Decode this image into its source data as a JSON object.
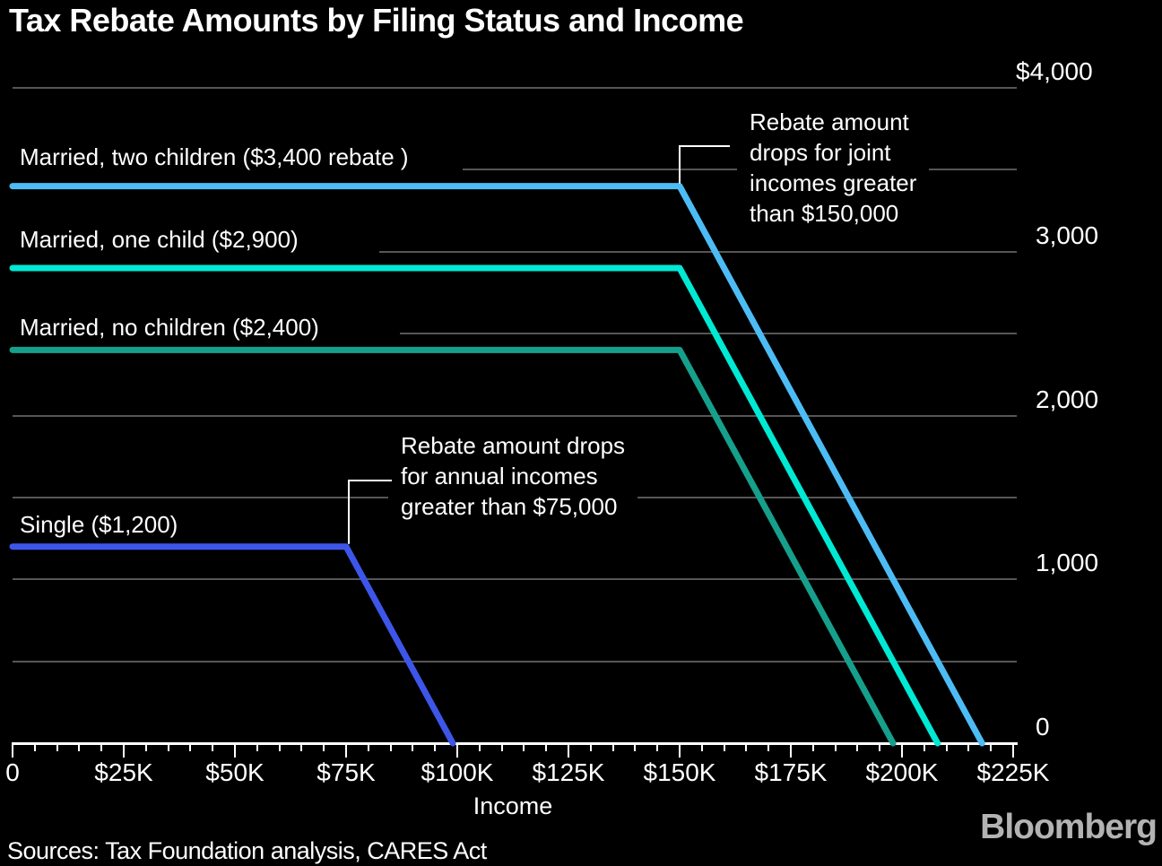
{
  "title": "Tax Rebate Amounts by Filing Status and Income",
  "source": "Sources: Tax Foundation analysis, CARES Act",
  "brand": "Bloomberg",
  "colors": {
    "background": "#000000",
    "grid": "#565656",
    "axis": "#ffffff",
    "text": "#ffffff",
    "brand_gray": "#b3b3b3",
    "married_two_children": "#4dbcf5",
    "married_one_child": "#00e9d4",
    "married_no_children": "#16a08c",
    "single": "#3d56e9"
  },
  "x_axis": {
    "label": "Income",
    "minor_tick_step": 5000,
    "ticks": [
      {
        "value": 0,
        "label": "0"
      },
      {
        "value": 25000,
        "label": "$25K"
      },
      {
        "value": 50000,
        "label": "$50K"
      },
      {
        "value": 75000,
        "label": "$75K"
      },
      {
        "value": 100000,
        "label": "$100K"
      },
      {
        "value": 125000,
        "label": "$125K"
      },
      {
        "value": 150000,
        "label": "$150K"
      },
      {
        "value": 175000,
        "label": "$175K"
      },
      {
        "value": 200000,
        "label": "$200K"
      },
      {
        "value": 225000,
        "label": "$225K"
      }
    ]
  },
  "y_axis": {
    "ticks": [
      {
        "value": 0,
        "label": "0"
      },
      {
        "value": 1000,
        "label": "1,000"
      },
      {
        "value": 2000,
        "label": "2,000"
      },
      {
        "value": 3000,
        "label": "3,000"
      },
      {
        "value": 4000,
        "label": "$4,000"
      }
    ]
  },
  "annotations": {
    "joint": {
      "lines": [
        "Rebate amount",
        "drops for joint",
        "incomes greater",
        "than $150,000"
      ]
    },
    "single": {
      "lines": [
        "Rebate amount drops",
        "for annual incomes",
        "greater than $75,000"
      ]
    }
  },
  "chart_data": {
    "type": "line",
    "title": "Tax Rebate Amounts by Filing Status and Income",
    "xlabel": "Income",
    "ylabel": "",
    "xlim": [
      0,
      225000
    ],
    "ylim": [
      0,
      4000
    ],
    "grid": "on",
    "grid_values": [
      500,
      1000,
      1500,
      2000,
      2500,
      3000,
      3500,
      4000
    ],
    "legend_position": "inline-labels",
    "series": [
      {
        "name": "Married, two children ($3,400 rebate )",
        "color": "#4dbcf5",
        "points": [
          [
            0,
            3400
          ],
          [
            150000,
            3400
          ],
          [
            218000,
            0
          ]
        ]
      },
      {
        "name": "Married, one child ($2,900)",
        "color": "#00e9d4",
        "points": [
          [
            0,
            2900
          ],
          [
            150000,
            2900
          ],
          [
            208000,
            0
          ]
        ]
      },
      {
        "name": "Married, no children ($2,400)",
        "color": "#16a08c",
        "points": [
          [
            0,
            2400
          ],
          [
            150000,
            2400
          ],
          [
            198000,
            0
          ]
        ]
      },
      {
        "name": "Single ($1,200)",
        "color": "#3d56e9",
        "points": [
          [
            0,
            1200
          ],
          [
            75000,
            1200
          ],
          [
            99000,
            0
          ]
        ]
      }
    ],
    "annotations": [
      {
        "id": "joint",
        "text": "Rebate amount drops for joint incomes greater than $150,000",
        "anchor_income": 150000,
        "anchor_value": 3400
      },
      {
        "id": "single",
        "text": "Rebate amount drops for annual incomes greater than $75,000",
        "anchor_income": 75000,
        "anchor_value": 1200
      }
    ]
  }
}
